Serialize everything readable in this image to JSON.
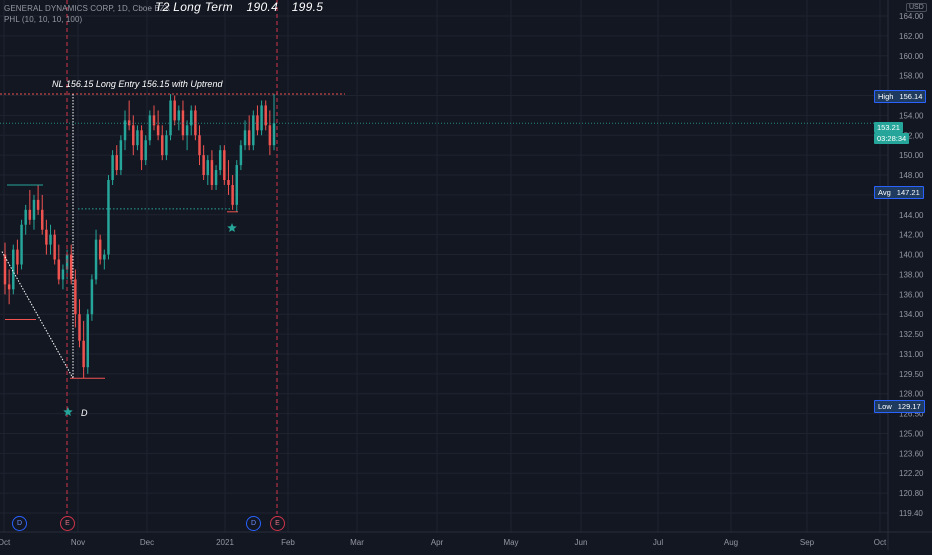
{
  "legend": {
    "symbol_line": "GENERAL DYNAMICS CORP, 1D, Cboe BZX",
    "indicator_line": "PHL (10, 10, 10, 100)"
  },
  "headline": {
    "label": "T2  Long Term",
    "value_1": "190.4",
    "value_2": "199.5"
  },
  "annotations": {
    "entry_text": "NL 156.15  Long Entry 156.15 with Uptrend",
    "d_label": "D"
  },
  "axis_tags": {
    "high": {
      "name": "High",
      "value": "156.14",
      "color": "#1e3a5f"
    },
    "last": {
      "value": "153.21",
      "countdown": "03:28:34",
      "color": "#26a69a"
    },
    "avg": {
      "name": "Avg",
      "value": "147.21",
      "color": "#1e3a5f"
    },
    "low": {
      "name": "Low",
      "value": "129.17",
      "color": "#1e3a5f"
    }
  },
  "currency_button": "USD",
  "events": [
    {
      "type": "dividend",
      "letter": "D"
    },
    {
      "type": "earnings",
      "letter": "E"
    },
    {
      "type": "dividend",
      "letter": "D"
    },
    {
      "type": "earnings",
      "letter": "E"
    }
  ],
  "colors": {
    "background": "#131722",
    "grid": "#1f2330",
    "up": "#26a69a",
    "down": "#ef5350",
    "text": "#9598a1"
  },
  "chart_data": {
    "type": "candlestick",
    "title": "GENERAL DYNAMICS CORP, 1D, Cboe BZX",
    "x_tick_labels": [
      "Oct",
      "Nov",
      "Dec",
      "2021",
      "Feb",
      "Mar",
      "Apr",
      "May",
      "Jun",
      "Jul",
      "Aug",
      "Sep",
      "Oct"
    ],
    "y_tick_labels": [
      "164.00",
      "162.00",
      "160.00",
      "158.00",
      "156.00",
      "154.00",
      "152.00",
      "150.00",
      "148.00",
      "146.00",
      "144.00",
      "142.00",
      "140.00",
      "138.00",
      "136.00",
      "134.00",
      "132.50",
      "131.00",
      "129.50",
      "128.00",
      "126.50",
      "125.00",
      "123.60",
      "122.20",
      "120.80",
      "119.40"
    ],
    "price_lines": {
      "high": 156.14,
      "last": 153.21,
      "avg": 147.21,
      "low": 129.17,
      "entry": 156.15
    },
    "ohlc": [
      [
        140.0,
        141.2,
        136.0,
        137.0
      ],
      [
        137.0,
        138.5,
        135.0,
        136.5
      ],
      [
        136.5,
        141.0,
        136.0,
        140.5
      ],
      [
        140.5,
        141.5,
        138.0,
        139.0
      ],
      [
        139.0,
        143.5,
        138.5,
        143.0
      ],
      [
        143.0,
        145.0,
        142.0,
        144.5
      ],
      [
        144.5,
        146.5,
        143.0,
        143.5
      ],
      [
        143.5,
        146.0,
        142.5,
        145.5
      ],
      [
        145.5,
        147.0,
        144.0,
        144.5
      ],
      [
        144.5,
        146.0,
        142.0,
        142.5
      ],
      [
        142.5,
        143.5,
        140.0,
        141.0
      ],
      [
        141.0,
        143.0,
        140.0,
        142.0
      ],
      [
        142.0,
        142.5,
        139.0,
        139.5
      ],
      [
        139.5,
        141.0,
        137.0,
        137.5
      ],
      [
        137.5,
        139.0,
        136.5,
        138.5
      ],
      [
        138.5,
        140.5,
        137.5,
        140.0
      ],
      [
        140.0,
        141.0,
        137.0,
        137.5
      ],
      [
        137.5,
        138.5,
        133.0,
        134.0
      ],
      [
        134.0,
        135.5,
        131.5,
        132.0
      ],
      [
        132.0,
        133.5,
        129.17,
        130.0
      ],
      [
        130.0,
        134.5,
        129.5,
        134.0
      ],
      [
        134.0,
        138.0,
        133.5,
        137.5
      ],
      [
        137.5,
        142.5,
        137.0,
        141.5
      ],
      [
        141.5,
        142.0,
        139.0,
        139.5
      ],
      [
        139.5,
        140.5,
        138.5,
        140.0
      ],
      [
        140.0,
        148.0,
        139.5,
        147.5
      ],
      [
        147.5,
        150.5,
        147.0,
        150.0
      ],
      [
        150.0,
        151.0,
        148.0,
        148.5
      ],
      [
        148.5,
        152.0,
        148.0,
        151.5
      ],
      [
        151.5,
        154.5,
        150.5,
        153.5
      ],
      [
        153.5,
        155.5,
        152.5,
        153.0
      ],
      [
        153.0,
        154.0,
        150.0,
        151.0
      ],
      [
        151.0,
        153.0,
        150.5,
        152.5
      ],
      [
        152.5,
        153.0,
        148.5,
        149.5
      ],
      [
        149.5,
        152.0,
        149.0,
        151.5
      ],
      [
        151.5,
        154.5,
        151.0,
        154.0
      ],
      [
        154.0,
        155.0,
        152.5,
        153.0
      ],
      [
        153.0,
        154.5,
        151.5,
        152.0
      ],
      [
        152.0,
        153.0,
        149.5,
        150.0
      ],
      [
        150.0,
        152.5,
        149.5,
        152.0
      ],
      [
        152.0,
        156.14,
        151.5,
        155.5
      ],
      [
        155.5,
        156.0,
        153.0,
        153.5
      ],
      [
        153.5,
        155.0,
        152.5,
        154.5
      ],
      [
        154.5,
        155.5,
        151.5,
        152.0
      ],
      [
        152.0,
        153.5,
        150.5,
        153.0
      ],
      [
        153.0,
        155.0,
        152.0,
        154.5
      ],
      [
        154.5,
        155.0,
        151.5,
        152.0
      ],
      [
        152.0,
        153.0,
        149.0,
        150.0
      ],
      [
        150.0,
        151.0,
        147.5,
        148.0
      ],
      [
        148.0,
        150.0,
        147.0,
        149.5
      ],
      [
        149.5,
        150.5,
        146.5,
        147.0
      ],
      [
        147.0,
        149.0,
        146.5,
        148.5
      ],
      [
        148.5,
        151.0,
        148.0,
        150.5
      ],
      [
        150.5,
        151.0,
        147.0,
        147.5
      ],
      [
        147.5,
        149.5,
        146.0,
        147.0
      ],
      [
        147.0,
        148.0,
        144.5,
        145.0
      ],
      [
        145.0,
        149.5,
        144.3,
        149.0
      ],
      [
        149.0,
        151.5,
        148.5,
        151.0
      ],
      [
        151.0,
        153.5,
        150.5,
        152.5
      ],
      [
        152.5,
        154.0,
        150.5,
        151.0
      ],
      [
        151.0,
        154.5,
        150.5,
        154.0
      ],
      [
        154.0,
        155.0,
        152.0,
        152.5
      ],
      [
        152.5,
        155.5,
        152.0,
        155.0
      ],
      [
        155.0,
        155.5,
        152.5,
        153.0
      ],
      [
        153.0,
        154.5,
        150.0,
        151.0
      ],
      [
        151.0,
        156.14,
        150.5,
        153.21
      ]
    ]
  }
}
